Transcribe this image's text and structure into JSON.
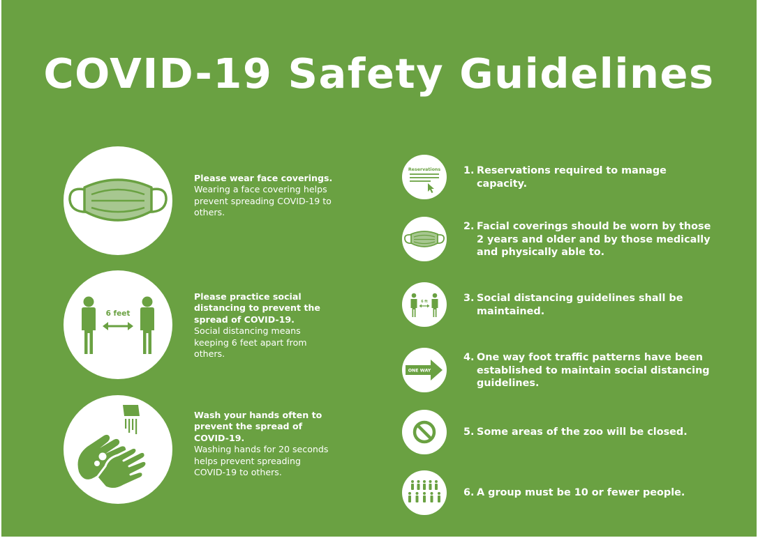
{
  "title": "COVID-19 Safety Guidelines",
  "left_items": [
    {
      "heading": "Please wear face coverings.",
      "body": "Wearing a face covering helps prevent spreading COVID-19 to others.",
      "icon": "face-mask-icon"
    },
    {
      "heading": "Please practice social distancing to prevent the spread of COVID-19.",
      "body": "Social distancing means keeping 6 feet apart from others.",
      "icon": "social-distance-icon",
      "icon_label": "6 feet"
    },
    {
      "heading": "Wash your hands often to prevent the spread of COVID-19.",
      "body": "Washing hands for 20 seconds helps prevent spreading COVID-19 to others.",
      "icon": "hand-washing-icon"
    }
  ],
  "rules": [
    {
      "number": "1.",
      "text": "Reservations required to manage capacity.",
      "icon": "reservations-icon",
      "icon_label": "Reservations"
    },
    {
      "number": "2.",
      "text": "Facial coverings should be worn by those 2 years and older and by those medically and physically able to.",
      "icon": "face-mask-icon"
    },
    {
      "number": "3.",
      "text": "Social distancing guidelines shall be maintained.",
      "icon": "social-distance-icon",
      "icon_label": "6 ft"
    },
    {
      "number": "4.",
      "text": "One way foot traffic patterns have been established to maintain social distancing guidelines.",
      "icon": "one-way-arrow-icon",
      "icon_label": "ONE WAY"
    },
    {
      "number": "5.",
      "text": "Some areas of the zoo will be closed.",
      "icon": "no-entry-icon"
    },
    {
      "number": "6.",
      "text": "A group must be 10 or fewer people.",
      "icon": "group-people-icon"
    }
  ],
  "colors": {
    "background": "#6aa142",
    "mask_fill": "#a7c790",
    "text": "#ffffff"
  }
}
